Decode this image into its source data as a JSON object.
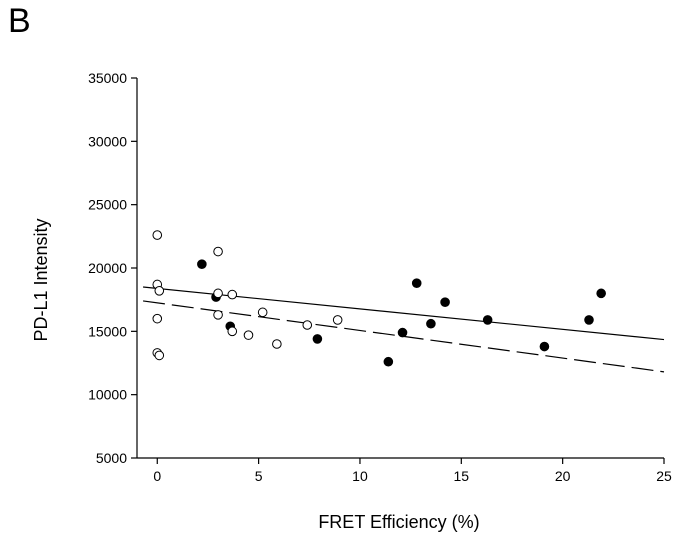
{
  "panel_label": "B",
  "chart_data": {
    "type": "scatter",
    "xlabel": "FRET Efficiency (%)",
    "ylabel": "PD-L1  Intensity",
    "xlim": [
      -1,
      25
    ],
    "ylim": [
      5000,
      35000
    ],
    "x_ticks": [
      0,
      5,
      10,
      15,
      20,
      25
    ],
    "y_ticks": [
      5000,
      10000,
      15000,
      20000,
      25000,
      30000,
      35000
    ],
    "grid": false,
    "series": [
      {
        "marker": "filled-circle",
        "color": "#000000",
        "points": [
          [
            2.2,
            20300
          ],
          [
            2.9,
            17700
          ],
          [
            3.6,
            15400
          ],
          [
            7.9,
            14400
          ],
          [
            11.4,
            12600
          ],
          [
            12.1,
            14900
          ],
          [
            12.8,
            18800
          ],
          [
            13.5,
            15600
          ],
          [
            14.2,
            17300
          ],
          [
            16.3,
            15900
          ],
          [
            19.1,
            13800
          ],
          [
            21.3,
            15900
          ],
          [
            21.9,
            18000
          ]
        ]
      },
      {
        "marker": "open-circle",
        "color": "#000000",
        "points": [
          [
            0.0,
            22600
          ],
          [
            0.0,
            18700
          ],
          [
            0.1,
            18200
          ],
          [
            0.0,
            16000
          ],
          [
            0.0,
            13300
          ],
          [
            0.1,
            13100
          ],
          [
            3.0,
            21300
          ],
          [
            3.0,
            18000
          ],
          [
            3.0,
            16300
          ],
          [
            3.7,
            17900
          ],
          [
            3.7,
            15000
          ],
          [
            4.5,
            14700
          ],
          [
            5.2,
            16500
          ],
          [
            5.9,
            14000
          ],
          [
            7.4,
            15500
          ],
          [
            8.9,
            15900
          ]
        ]
      }
    ],
    "lines": [
      {
        "style": "solid",
        "x": [
          -0.7,
          25
        ],
        "y": [
          18500,
          14350
        ]
      },
      {
        "style": "dashed",
        "x": [
          -0.7,
          25
        ],
        "y": [
          17400,
          11800
        ]
      }
    ]
  }
}
